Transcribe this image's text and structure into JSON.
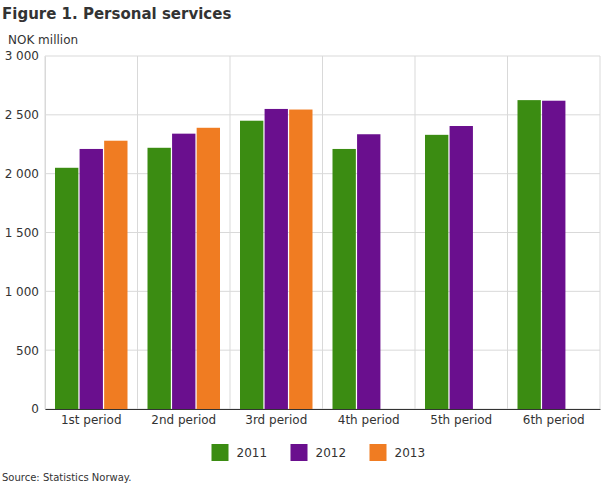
{
  "chart_data": {
    "type": "bar",
    "title": "Figure 1. Personal services",
    "y_label": "NOK million",
    "source": "Source: Statistics Norway.",
    "categories": [
      "1st period",
      "2nd period",
      "3rd period",
      "4th period",
      "5th period",
      "6th period"
    ],
    "series": [
      {
        "name": "2011",
        "color": "#3b8c12",
        "values": [
          2050,
          2220,
          2450,
          2210,
          2330,
          2625
        ]
      },
      {
        "name": "2012",
        "color": "#6a0f8e",
        "values": [
          2210,
          2340,
          2550,
          2335,
          2405,
          2620
        ]
      },
      {
        "name": "2013",
        "color": "#f07c22",
        "values": [
          2280,
          2390,
          2545,
          null,
          null,
          null
        ]
      }
    ],
    "ylim": [
      0,
      3000
    ],
    "yticks": [
      0,
      500,
      {
        "value": 1000,
        "label": "1 000"
      },
      {
        "value": 1500,
        "label": "1 500"
      },
      {
        "value": 2000,
        "label": "2 000"
      },
      {
        "value": 2500,
        "label": "2 500"
      },
      {
        "value": 3000,
        "label": "3 000"
      }
    ],
    "grid": true,
    "legend": "bottom"
  }
}
